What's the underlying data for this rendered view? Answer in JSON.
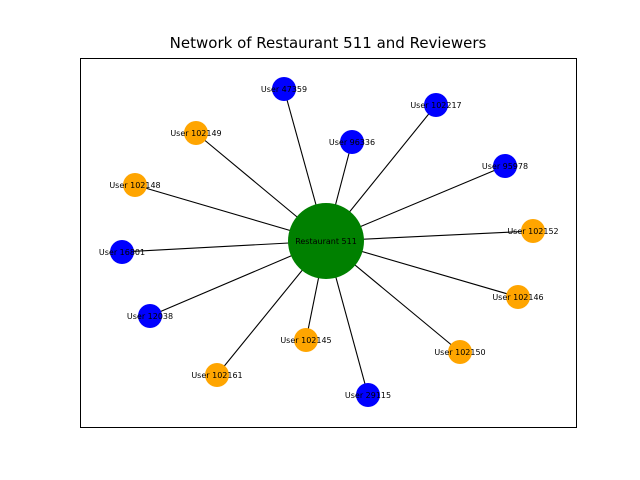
{
  "title": "Network of Restaurant 511 and Reviewers",
  "colors": {
    "center": "#008000",
    "blue": "#0000ff",
    "orange": "#ffa500",
    "edge": "#000000"
  },
  "center": {
    "label": "Restaurant 511"
  },
  "nodes": [
    {
      "label": "User 47359",
      "color": "blue"
    },
    {
      "label": "User 102149",
      "color": "orange"
    },
    {
      "label": "User 96336",
      "color": "blue"
    },
    {
      "label": "User 102217",
      "color": "blue"
    },
    {
      "label": "User 95978",
      "color": "blue"
    },
    {
      "label": "User 102148",
      "color": "orange"
    },
    {
      "label": "User 16801",
      "color": "blue"
    },
    {
      "label": "User 102152",
      "color": "orange"
    },
    {
      "label": "User 102146",
      "color": "orange"
    },
    {
      "label": "User 12038",
      "color": "blue"
    },
    {
      "label": "User 102145",
      "color": "orange"
    },
    {
      "label": "User 102150",
      "color": "orange"
    },
    {
      "label": "User 102161",
      "color": "orange"
    },
    {
      "label": "User 29115",
      "color": "blue"
    }
  ]
}
